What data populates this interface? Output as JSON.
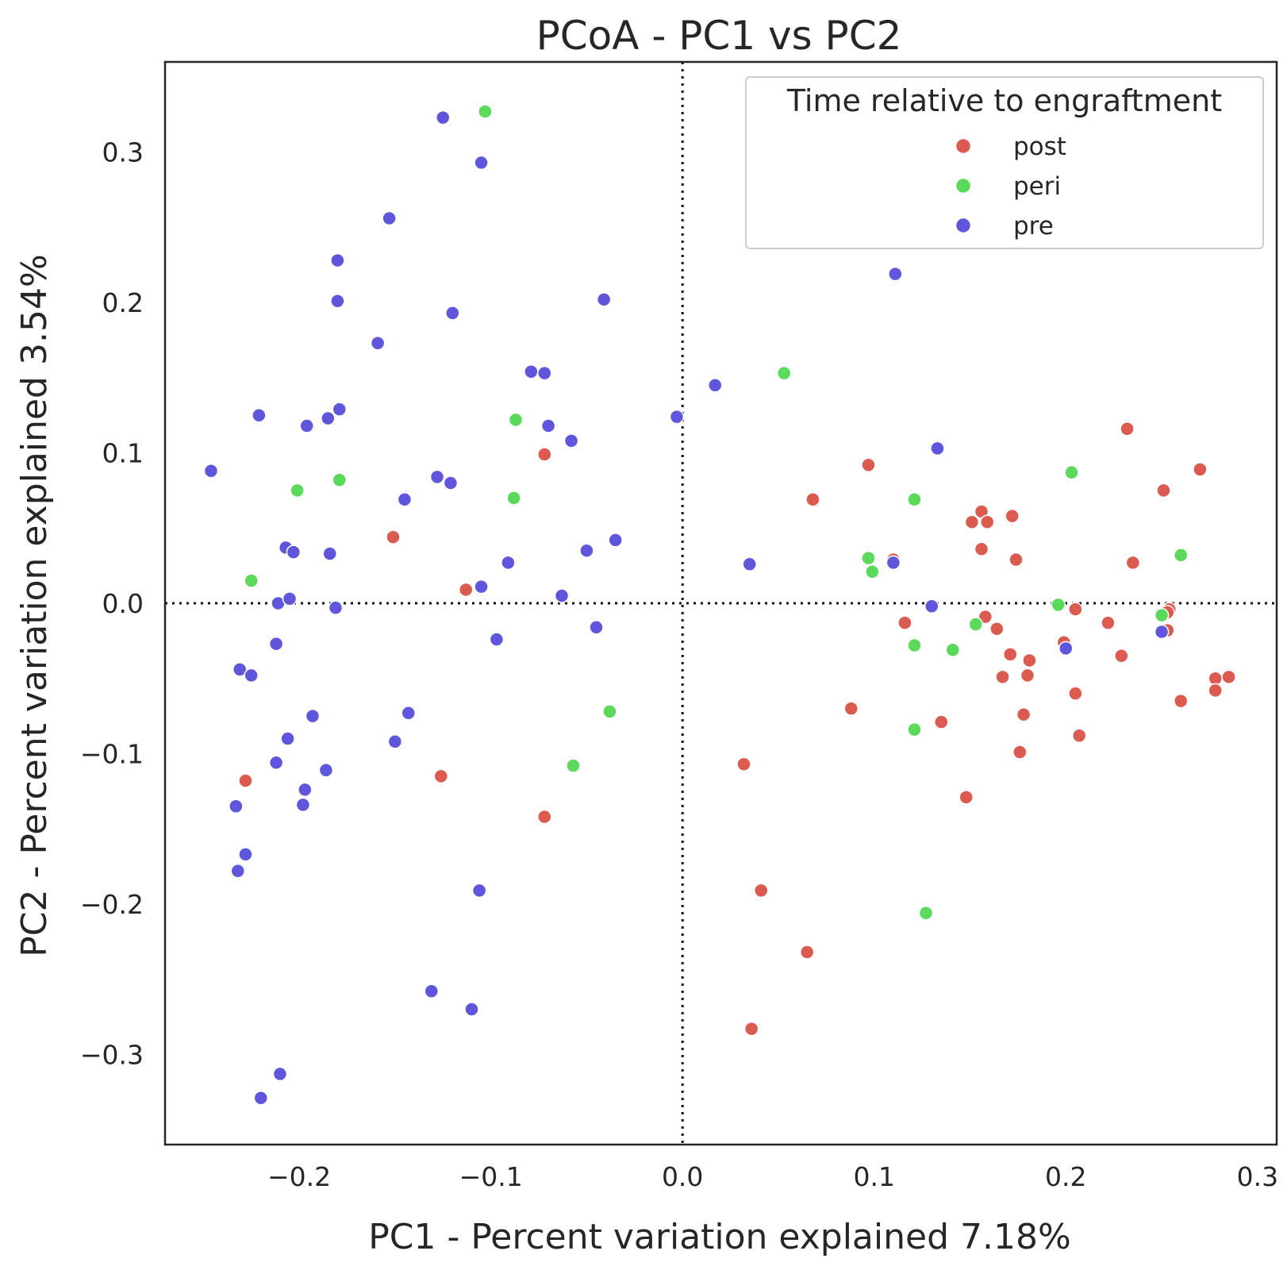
{
  "chart_data": {
    "type": "scatter",
    "title": "PCoA - PC1 vs PC2",
    "xlabel": "PC1 - Percent variation explained 7.18%",
    "ylabel": "PC2 - Percent variation explained 3.54%",
    "xlim": [
      -0.27,
      0.31
    ],
    "ylim": [
      -0.36,
      0.36
    ],
    "x_ticks": [
      -0.2,
      -0.1,
      0.0,
      0.1,
      0.2,
      0.3
    ],
    "x_tick_labels": [
      "−0.2",
      "−0.1",
      "0.0",
      "0.1",
      "0.2",
      "0.3"
    ],
    "y_ticks": [
      -0.3,
      -0.2,
      -0.1,
      0.0,
      0.1,
      0.2,
      0.3
    ],
    "y_tick_labels": [
      "−0.3",
      "−0.2",
      "−0.1",
      "0.0",
      "0.1",
      "0.2",
      "0.3"
    ],
    "reference_lines": {
      "x": 0.0,
      "y": 0.0,
      "style": "dotted"
    },
    "grid": false,
    "legend": {
      "title": "Time relative to engraftment",
      "placement": "top-right"
    },
    "series": [
      {
        "name": "post",
        "color": "#dc5b50",
        "points": [
          [
            -0.072,
            0.099
          ],
          [
            -0.151,
            0.044
          ],
          [
            -0.113,
            0.009
          ],
          [
            -0.228,
            -0.118
          ],
          [
            -0.126,
            -0.115
          ],
          [
            -0.072,
            -0.142
          ],
          [
            0.097,
            0.092
          ],
          [
            0.068,
            0.069
          ],
          [
            0.232,
            0.116
          ],
          [
            0.27,
            0.089
          ],
          [
            0.251,
            0.075
          ],
          [
            0.156,
            0.061
          ],
          [
            0.151,
            0.054
          ],
          [
            0.159,
            0.054
          ],
          [
            0.172,
            0.058
          ],
          [
            0.156,
            0.036
          ],
          [
            0.174,
            0.029
          ],
          [
            0.11,
            0.029
          ],
          [
            0.235,
            0.027
          ],
          [
            0.205,
            -0.004
          ],
          [
            0.254,
            -0.004
          ],
          [
            0.253,
            -0.006
          ],
          [
            0.116,
            -0.013
          ],
          [
            0.158,
            -0.009
          ],
          [
            0.164,
            -0.017
          ],
          [
            0.222,
            -0.013
          ],
          [
            0.253,
            -0.018
          ],
          [
            0.199,
            -0.026
          ],
          [
            0.171,
            -0.034
          ],
          [
            0.181,
            -0.038
          ],
          [
            0.229,
            -0.035
          ],
          [
            0.167,
            -0.049
          ],
          [
            0.18,
            -0.048
          ],
          [
            0.278,
            -0.05
          ],
          [
            0.285,
            -0.049
          ],
          [
            0.278,
            -0.058
          ],
          [
            0.26,
            -0.065
          ],
          [
            0.088,
            -0.07
          ],
          [
            0.205,
            -0.06
          ],
          [
            0.135,
            -0.079
          ],
          [
            0.178,
            -0.074
          ],
          [
            0.207,
            -0.088
          ],
          [
            0.176,
            -0.099
          ],
          [
            0.032,
            -0.107
          ],
          [
            0.148,
            -0.129
          ],
          [
            0.041,
            -0.191
          ],
          [
            0.065,
            -0.232
          ],
          [
            0.036,
            -0.283
          ]
        ]
      },
      {
        "name": "peri",
        "color": "#5ad95a",
        "points": [
          [
            -0.103,
            0.327
          ],
          [
            -0.087,
            0.122
          ],
          [
            -0.179,
            0.082
          ],
          [
            -0.201,
            0.075
          ],
          [
            -0.088,
            0.07
          ],
          [
            -0.225,
            0.015
          ],
          [
            -0.038,
            -0.072
          ],
          [
            -0.057,
            -0.108
          ],
          [
            0.053,
            0.153
          ],
          [
            0.121,
            0.069
          ],
          [
            0.203,
            0.087
          ],
          [
            0.097,
            0.03
          ],
          [
            0.099,
            0.021
          ],
          [
            0.26,
            0.032
          ],
          [
            0.196,
            -0.001
          ],
          [
            0.153,
            -0.014
          ],
          [
            0.121,
            -0.028
          ],
          [
            0.141,
            -0.031
          ],
          [
            0.25,
            -0.008
          ],
          [
            0.121,
            -0.084
          ],
          [
            0.127,
            -0.206
          ]
        ]
      },
      {
        "name": "pre",
        "color": "#6056dc",
        "points": [
          [
            -0.125,
            0.323
          ],
          [
            -0.105,
            0.293
          ],
          [
            -0.153,
            0.256
          ],
          [
            -0.18,
            0.228
          ],
          [
            -0.18,
            0.201
          ],
          [
            -0.12,
            0.193
          ],
          [
            -0.041,
            0.202
          ],
          [
            -0.159,
            0.173
          ],
          [
            -0.079,
            0.154
          ],
          [
            -0.072,
            0.153
          ],
          [
            -0.221,
            0.125
          ],
          [
            -0.179,
            0.129
          ],
          [
            -0.185,
            0.123
          ],
          [
            -0.196,
            0.118
          ],
          [
            -0.07,
            0.118
          ],
          [
            -0.058,
            0.108
          ],
          [
            -0.003,
            0.124
          ],
          [
            0.017,
            0.145
          ],
          [
            0.111,
            0.219
          ],
          [
            0.133,
            0.103
          ],
          [
            -0.246,
            0.088
          ],
          [
            -0.128,
            0.084
          ],
          [
            -0.121,
            0.08
          ],
          [
            -0.145,
            0.069
          ],
          [
            -0.207,
            0.037
          ],
          [
            -0.203,
            0.034
          ],
          [
            -0.184,
            0.033
          ],
          [
            -0.05,
            0.035
          ],
          [
            -0.035,
            0.042
          ],
          [
            -0.091,
            0.027
          ],
          [
            -0.105,
            0.011
          ],
          [
            -0.063,
            0.005
          ],
          [
            -0.211,
            0.0
          ],
          [
            -0.205,
            0.003
          ],
          [
            -0.181,
            -0.003
          ],
          [
            -0.045,
            -0.016
          ],
          [
            -0.097,
            -0.024
          ],
          [
            0.035,
            0.026
          ],
          [
            0.11,
            0.027
          ],
          [
            0.13,
            -0.002
          ],
          [
            0.2,
            -0.03
          ],
          [
            0.25,
            -0.019
          ],
          [
            -0.212,
            -0.027
          ],
          [
            -0.231,
            -0.044
          ],
          [
            -0.225,
            -0.048
          ],
          [
            -0.193,
            -0.075
          ],
          [
            -0.143,
            -0.073
          ],
          [
            -0.206,
            -0.09
          ],
          [
            -0.15,
            -0.092
          ],
          [
            -0.212,
            -0.106
          ],
          [
            -0.186,
            -0.111
          ],
          [
            -0.197,
            -0.124
          ],
          [
            -0.198,
            -0.134
          ],
          [
            -0.233,
            -0.135
          ],
          [
            -0.228,
            -0.167
          ],
          [
            -0.232,
            -0.178
          ],
          [
            -0.106,
            -0.191
          ],
          [
            -0.131,
            -0.258
          ],
          [
            -0.11,
            -0.27
          ],
          [
            -0.21,
            -0.313
          ],
          [
            -0.22,
            -0.329
          ]
        ]
      }
    ]
  }
}
